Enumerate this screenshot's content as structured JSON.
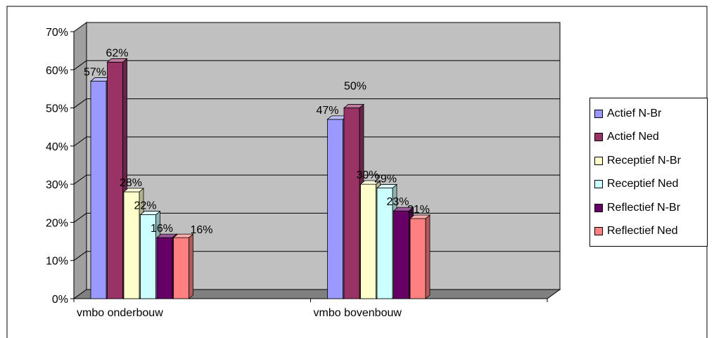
{
  "chart_data": {
    "type": "bar",
    "style": "3d-clustered",
    "categories": [
      "vmbo onderbouw",
      "vmbo bovenbouw"
    ],
    "series": [
      {
        "name": "Actief N-Br",
        "color": "#9999ff",
        "values": [
          57,
          47
        ],
        "labels": [
          "57%",
          "47%"
        ]
      },
      {
        "name": "Actief Ned",
        "color": "#993366",
        "values": [
          62,
          50
        ],
        "labels": [
          "62%",
          "50%"
        ]
      },
      {
        "name": "Receptief N-Br",
        "color": "#ffffcc",
        "values": [
          28,
          30
        ],
        "labels": [
          "28%",
          "30%"
        ]
      },
      {
        "name": "Receptief Ned",
        "color": "#ccffff",
        "values": [
          22,
          29
        ],
        "labels": [
          "22%",
          "29%"
        ]
      },
      {
        "name": "Reflectief N-Br",
        "color": "#660066",
        "values": [
          16,
          23
        ],
        "labels": [
          "16%",
          "23%"
        ]
      },
      {
        "name": "Reflectief Ned",
        "color": "#ff8080",
        "values": [
          16,
          21
        ],
        "labels": [
          "16%",
          "21%"
        ]
      }
    ],
    "yticks": [
      "0%",
      "10%",
      "20%",
      "30%",
      "40%",
      "50%",
      "60%",
      "70%"
    ],
    "ylim": [
      0,
      70
    ],
    "grid": true,
    "legend": "right",
    "wall_color": "#c0c0c0",
    "floor_color": "#808080"
  }
}
